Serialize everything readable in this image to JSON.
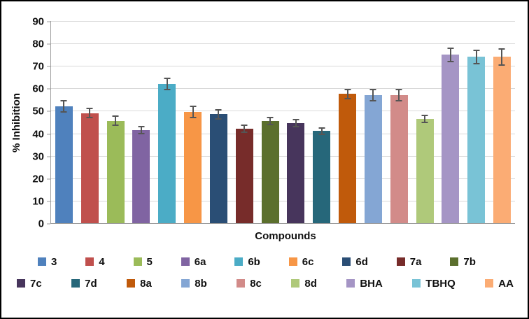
{
  "chart_data": {
    "type": "bar",
    "title": "",
    "xlabel": "Compounds",
    "ylabel": "% Inhibition",
    "ylim": [
      0,
      90
    ],
    "yticks": [
      0,
      10,
      20,
      30,
      40,
      50,
      60,
      70,
      80,
      90
    ],
    "grid": "horizontal",
    "gridline_color": "#d9d9d9",
    "axis_color": "#9c9c9c",
    "error_bar_color": "#555555",
    "legend_position": "bottom",
    "legend_rows": 2,
    "categories": [
      "3",
      "4",
      "5",
      "6a",
      "6b",
      "6c",
      "6d",
      "7a",
      "7b",
      "7c",
      "7d",
      "8a",
      "8b",
      "8c",
      "8d",
      "BHA",
      "TBHQ",
      "AA"
    ],
    "values": [
      52,
      49,
      45.5,
      41.5,
      62,
      49.5,
      48.5,
      42,
      45.5,
      44.5,
      41,
      57.5,
      57,
      57,
      46.5,
      75,
      74,
      74
    ],
    "errors": [
      2.5,
      2,
      2,
      1.5,
      2.5,
      2.5,
      2,
      1.5,
      1.5,
      1.5,
      1.5,
      2,
      2.5,
      2.5,
      1.5,
      3,
      3,
      3.5
    ],
    "colors": [
      "#4F81BD",
      "#C0504D",
      "#9BBB59",
      "#8064A2",
      "#4BACC6",
      "#F79646",
      "#2A4E75",
      "#772C2A",
      "#5B6F2D",
      "#47355C",
      "#26677A",
      "#C05A0B",
      "#84A6D4",
      "#D28B89",
      "#AFC97A",
      "#A595C5",
      "#79C3D6",
      "#FBAC74"
    ]
  }
}
